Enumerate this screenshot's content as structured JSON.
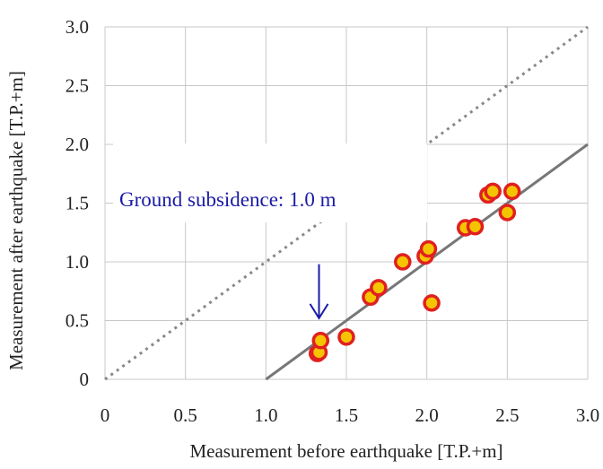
{
  "chart_data": {
    "type": "scatter",
    "xlabel": "Measurement before earthquake [T.P.+m]",
    "ylabel": "Measurement after earthquake [T.P.+m]",
    "xlim": [
      0,
      3.0
    ],
    "ylim": [
      0,
      3.0
    ],
    "x_ticks": [
      "0",
      "0.5",
      "1.0",
      "1.5",
      "2.0",
      "2.5",
      "3.0"
    ],
    "y_ticks": [
      "0",
      "0.5",
      "1.0",
      "1.5",
      "2.0",
      "2.5",
      "3.0"
    ],
    "grid": true,
    "points": [
      {
        "x": 1.32,
        "y": 0.22
      },
      {
        "x": 1.33,
        "y": 0.23
      },
      {
        "x": 1.34,
        "y": 0.33
      },
      {
        "x": 1.5,
        "y": 0.36
      },
      {
        "x": 1.65,
        "y": 0.7
      },
      {
        "x": 1.7,
        "y": 0.78
      },
      {
        "x": 1.85,
        "y": 1.0
      },
      {
        "x": 1.99,
        "y": 1.05
      },
      {
        "x": 2.01,
        "y": 1.11
      },
      {
        "x": 2.03,
        "y": 0.65
      },
      {
        "x": 2.24,
        "y": 1.29
      },
      {
        "x": 2.3,
        "y": 1.3
      },
      {
        "x": 2.38,
        "y": 1.57
      },
      {
        "x": 2.41,
        "y": 1.6
      },
      {
        "x": 2.5,
        "y": 1.42
      },
      {
        "x": 2.53,
        "y": 1.6
      }
    ],
    "reference_lines": [
      {
        "style": "dotted",
        "color": "#888888",
        "from": [
          0,
          0
        ],
        "to": [
          3.0,
          3.0
        ]
      },
      {
        "style": "solid",
        "color": "#777777",
        "from": [
          1.0,
          0
        ],
        "to": [
          3.0,
          2.0
        ]
      }
    ],
    "annotation": {
      "text": "Ground subsidence: 1.0 m",
      "color": "#1a1aa6",
      "arrow_from": [
        1.33,
        0.98
      ],
      "arrow_to": [
        1.33,
        0.52
      ]
    },
    "marker": {
      "fill": "#f5c400",
      "stroke": "#e02020"
    }
  }
}
